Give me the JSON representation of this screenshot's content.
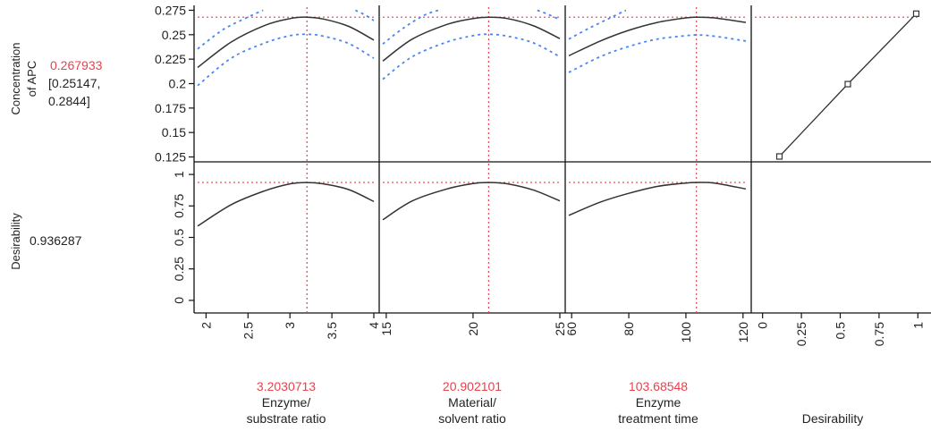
{
  "chart_data": {
    "type": "line",
    "title": "",
    "response": {
      "label_lines": [
        "Concentration",
        "of APC"
      ],
      "value": "0.267933",
      "ci_lines": [
        "[0.25147,",
        "0.2844]"
      ],
      "y_ticks": [
        "0.275",
        "0.25",
        "0.225",
        "0.2",
        "0.175",
        "0.15",
        "0.125"
      ],
      "ylim": [
        0.12,
        0.28
      ],
      "current_value": 0.267933
    },
    "desirability_row": {
      "label": "Desirability",
      "value": "0.936287",
      "y_ticks": [
        "1",
        "0.75",
        "0.5",
        "0.25",
        "0"
      ],
      "ylim": [
        -0.1,
        1.1
      ],
      "current_value": 0.936287
    },
    "factors": [
      {
        "value_label": "3.2030713",
        "name_lines": [
          "Enzyme/",
          "substrate ratio"
        ],
        "x_ticks": [
          "2",
          "2.5",
          "3",
          "3.5",
          "4"
        ],
        "xlim": [
          1.9,
          4.0
        ],
        "current": 3.2030713,
        "apc_curve": {
          "x": [
            1.9,
            2.3,
            2.7,
            3.0,
            3.2,
            3.4,
            3.7,
            4.0
          ],
          "y": [
            0.2165,
            0.2425,
            0.2595,
            0.2665,
            0.2679,
            0.266,
            0.2585,
            0.2445
          ]
        },
        "apc_lower": {
          "x": [
            1.9,
            2.3,
            2.7,
            3.0,
            3.2,
            3.4,
            3.7,
            4.0
          ],
          "y": [
            0.198,
            0.226,
            0.2415,
            0.249,
            0.2505,
            0.2485,
            0.241,
            0.226
          ]
        },
        "apc_upper_left": {
          "x": [
            1.9,
            2.2,
            2.5,
            2.68
          ],
          "y": [
            0.2355,
            0.255,
            0.268,
            0.275
          ]
        },
        "apc_upper_right": {
          "x": [
            3.78,
            3.9,
            4.0
          ],
          "y": [
            0.275,
            0.27,
            0.2645
          ]
        },
        "desirability_curve": {
          "x": [
            1.9,
            2.3,
            2.7,
            3.0,
            3.2,
            3.4,
            3.7,
            4.0
          ],
          "y": [
            0.59,
            0.76,
            0.87,
            0.925,
            0.936,
            0.925,
            0.88,
            0.785
          ]
        }
      },
      {
        "value_label": "20.902101",
        "name_lines": [
          "Material/",
          "solvent ratio"
        ],
        "x_ticks": [
          "15",
          "20",
          "25"
        ],
        "xlim": [
          14.8,
          25.0
        ],
        "current": 20.902101,
        "apc_curve": {
          "x": [
            14.8,
            16.5,
            18.5,
            20.0,
            20.9,
            22.0,
            23.5,
            25.0
          ],
          "y": [
            0.223,
            0.2455,
            0.2605,
            0.2665,
            0.2679,
            0.2665,
            0.259,
            0.246
          ]
        },
        "apc_lower": {
          "x": [
            14.8,
            16.5,
            18.5,
            20.0,
            20.9,
            22.0,
            23.5,
            25.0
          ],
          "y": [
            0.2045,
            0.2275,
            0.2425,
            0.249,
            0.2505,
            0.2485,
            0.2415,
            0.2275
          ]
        },
        "apc_upper_left": {
          "x": [
            14.8,
            16.0,
            17.2,
            18.0
          ],
          "y": [
            0.2405,
            0.257,
            0.27,
            0.275
          ]
        },
        "apc_upper_right": {
          "x": [
            23.7,
            24.3,
            25.0
          ],
          "y": [
            0.275,
            0.271,
            0.2655
          ]
        },
        "desirability_curve": {
          "x": [
            14.8,
            16.5,
            18.5,
            20.0,
            20.9,
            22.0,
            23.5,
            25.0
          ],
          "y": [
            0.64,
            0.79,
            0.885,
            0.928,
            0.936,
            0.925,
            0.875,
            0.79
          ]
        }
      },
      {
        "value_label": "103.68548",
        "name_lines": [
          "Enzyme",
          "treatment time"
        ],
        "x_ticks": [
          "60",
          "80",
          "100",
          "120"
        ],
        "xlim": [
          59.0,
          121.0
        ],
        "current": 103.68548,
        "apc_curve": {
          "x": [
            59,
            70,
            80,
            90,
            100,
            103.7,
            110,
            121
          ],
          "y": [
            0.2285,
            0.2435,
            0.2545,
            0.2625,
            0.2672,
            0.2679,
            0.2672,
            0.2625
          ]
        },
        "apc_lower": {
          "x": [
            59,
            70,
            80,
            90,
            100,
            103.7,
            110,
            121
          ],
          "y": [
            0.2115,
            0.2275,
            0.238,
            0.2455,
            0.249,
            0.2497,
            0.2485,
            0.2435
          ]
        },
        "apc_upper_left": {
          "x": [
            59,
            66,
            73,
            79
          ],
          "y": [
            0.2455,
            0.2565,
            0.2665,
            0.275
          ]
        },
        "apc_upper_right": {
          "x": [],
          "y": []
        },
        "desirability_curve": {
          "x": [
            59,
            70,
            80,
            90,
            100,
            103.7,
            110,
            121
          ],
          "y": [
            0.675,
            0.78,
            0.85,
            0.905,
            0.932,
            0.936,
            0.932,
            0.885
          ]
        }
      }
    ],
    "desirability_function": {
      "name": "Desirability",
      "x_ticks": [
        "0",
        "0.25",
        "0.5",
        "0.75",
        "1"
      ],
      "xlim": [
        -0.05,
        1.05
      ],
      "points": {
        "x": [
          0.1,
          0.55,
          1.0
        ],
        "y": [
          0.1255,
          0.1995,
          0.2715
        ]
      }
    },
    "colors": {
      "curve": "#333333",
      "ci": "#4a86f0",
      "reference": "#e8424e",
      "frame": "#111111",
      "label": "#222222"
    }
  }
}
